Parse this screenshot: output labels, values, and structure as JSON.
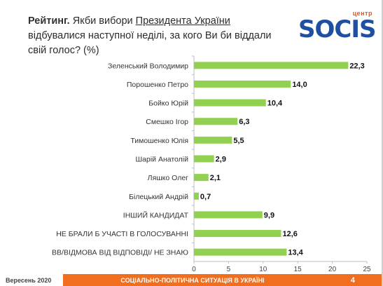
{
  "title": {
    "part1": "Рейтинг.",
    "part2": " Якби вибори ",
    "part3": "Президента України",
    "part4": " відбувалися наступної неділі, за кого Ви би віддали свій голос? (%)"
  },
  "logo": {
    "small": "центр",
    "big": "SOCIS"
  },
  "chart_data": {
    "type": "bar",
    "orientation": "horizontal",
    "categories": [
      "Зеленський Володимир",
      "Порошенко Петро",
      "Бойко Юрій",
      "Смешко Ігор",
      "Тимошенко Юлія",
      "Шарій Анатолій",
      "Ляшко Олег",
      "Білецький Андрій",
      "ІНШИЙ КАНДИДАТ",
      "НЕ БРАЛИ Б УЧАСТІ В ГОЛОСУВАННІ",
      "ВВ/ВІДМОВА ВІД ВІДПОВІДІ/ НЕ ЗНАЮ"
    ],
    "values": [
      22.3,
      14.0,
      10.4,
      6.3,
      5.5,
      2.9,
      2.1,
      0.7,
      9.9,
      12.6,
      13.4
    ],
    "value_labels": [
      "22,3",
      "14,0",
      "10,4",
      "6,3",
      "5,5",
      "2,9",
      "2,1",
      "0,7",
      "9,9",
      "12,6",
      "13,4"
    ],
    "xlim": [
      0,
      25
    ],
    "xticks": [
      0,
      5,
      10,
      15,
      20,
      25
    ],
    "bar_color": "#92d050",
    "grid": false,
    "legend": "none"
  },
  "footer": {
    "date": "Вересень 2020",
    "center": "СОЦІАЛЬНО-ПОЛІТИЧНА СИТУАЦІЯ В УКРАЇНІ",
    "page": "4",
    "color": "#f06e1e"
  }
}
